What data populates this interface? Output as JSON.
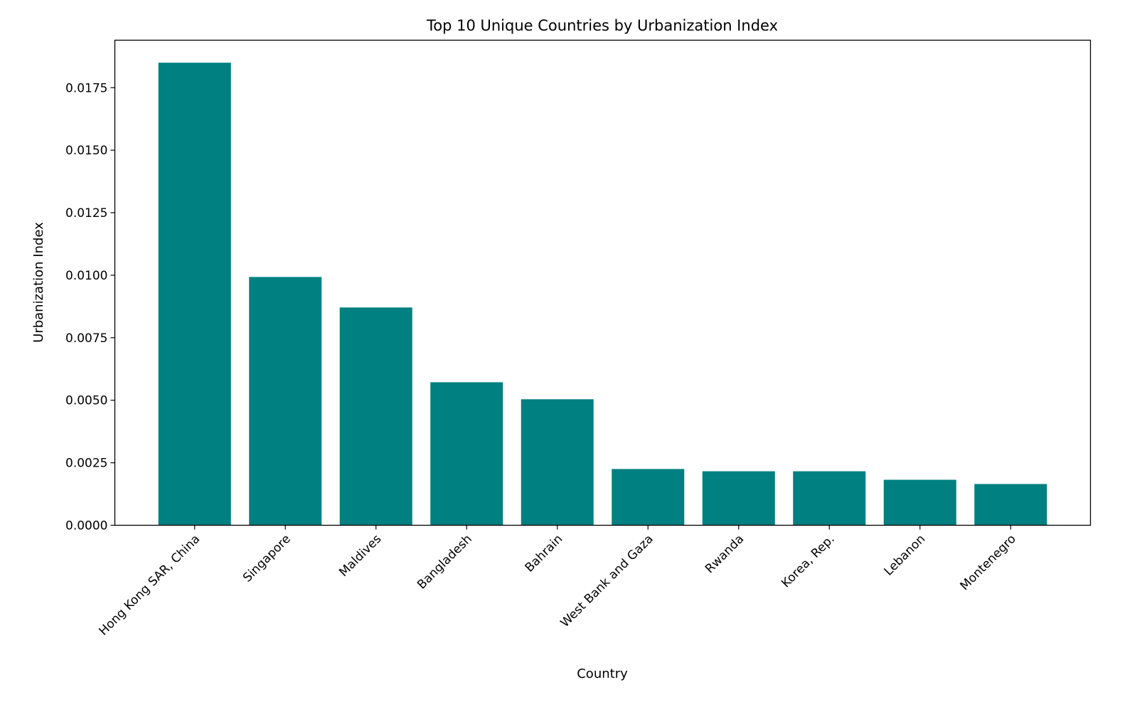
{
  "chart_data": {
    "type": "bar",
    "title": "Top 10 Unique Countries by Urbanization Index",
    "xlabel": "Country",
    "ylabel": "Urbanization Index",
    "categories": [
      "Hong Kong SAR, China",
      "Singapore",
      "Maldives",
      "Bangladesh",
      "Bahrain",
      "West Bank and Gaza",
      "Rwanda",
      "Korea, Rep.",
      "Lebanon",
      "Montenegro"
    ],
    "values": [
      0.0185,
      0.00993,
      0.00871,
      0.00572,
      0.00504,
      0.00225,
      0.00216,
      0.00216,
      0.00182,
      0.00165
    ],
    "ylim": [
      0,
      0.0194
    ],
    "yticks": [
      "0.0000",
      "0.0025",
      "0.0050",
      "0.0075",
      "0.0100",
      "0.0125",
      "0.0150",
      "0.0175"
    ],
    "xtick_rotation": 45,
    "grid": false,
    "bar_color": "#008080"
  }
}
